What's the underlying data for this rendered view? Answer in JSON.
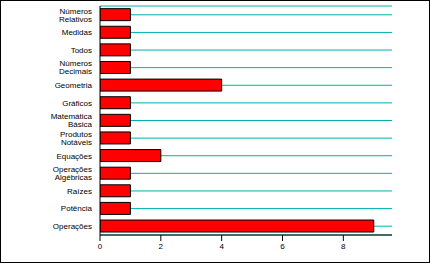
{
  "chart_data": {
    "type": "bar",
    "orientation": "horizontal",
    "categories": [
      "Números Relativos",
      "Medidas",
      "Todos",
      "Números Decimais",
      "Geometria",
      "Gráficos",
      "Matemática Básica",
      "Produtos Notáveis",
      "Equações",
      "Operações Algébricas",
      "Raízes",
      "Potência",
      "Operações"
    ],
    "values": [
      1,
      1,
      1,
      1,
      4,
      1,
      1,
      1,
      2,
      1,
      1,
      1,
      9
    ],
    "color": "#ff0000",
    "xlim": [
      0,
      9.6
    ],
    "xticks": [
      0,
      2,
      4,
      6,
      8
    ],
    "grid": true
  }
}
